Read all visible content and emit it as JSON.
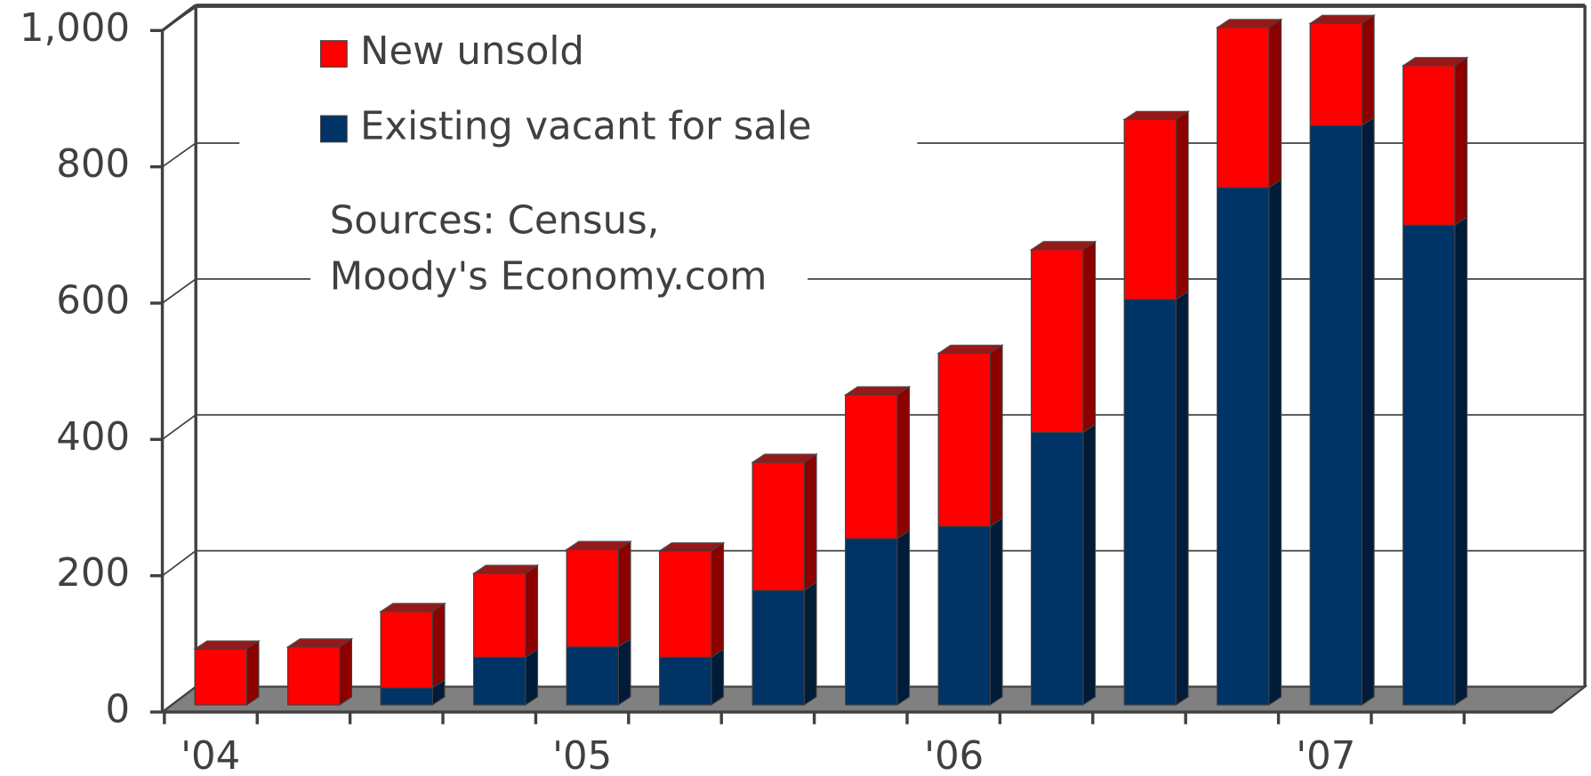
{
  "chart_data": {
    "type": "bar",
    "stacked": true,
    "categories": [
      "'04",
      null,
      null,
      null,
      "'05",
      null,
      null,
      null,
      "'06",
      null,
      null,
      null,
      "'07",
      null
    ],
    "series": [
      {
        "name": "New unsold",
        "color": "#ff0000",
        "values": [
          82,
          85,
          112,
          123,
          143,
          156,
          188,
          211,
          254,
          268,
          264,
          235,
          150,
          234
        ]
      },
      {
        "name": "Existing vacant for sale",
        "color": "#003366",
        "values": [
          0,
          0,
          25,
          70,
          85,
          70,
          168,
          244,
          262,
          400,
          595,
          759,
          850,
          704
        ]
      }
    ],
    "annotation": [
      "Sources: Census,",
      "Moody's Economy.com"
    ],
    "ylim": [
      0,
      1000
    ],
    "yticks": [
      0,
      200,
      400,
      600,
      800,
      {
        "value": 1000,
        "label": "1,000"
      }
    ],
    "grid": true
  }
}
